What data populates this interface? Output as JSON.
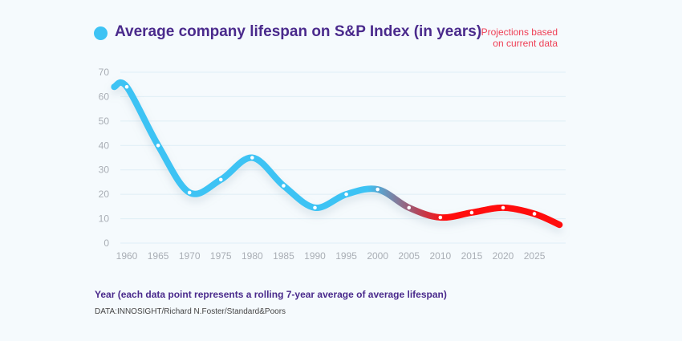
{
  "header": {
    "title": "Average company lifespan on S&P Index (in years)",
    "projection_note_line1": "Projections based",
    "projection_note_line2": "on current data"
  },
  "footer": {
    "xlabel": "Year (each data point represents a rolling 7-year average of average lifespan)",
    "source": "DATA:INNOSIGHT/Richard N.Foster/Standard&Poors"
  },
  "colors": {
    "history": "#3ec3f4",
    "projection": "#ff1010",
    "title": "#4a2a8c",
    "note": "#ef3f55",
    "grid": "#dfeef6",
    "tick": "#a9aeb5"
  },
  "chart_data": {
    "type": "line",
    "title": "Average company lifespan on S&P Index (in years)",
    "xlabel": "Year (each data point represents a rolling 7-year average of average lifespan)",
    "ylabel": "",
    "xlim": [
      1960,
      2030
    ],
    "ylim": [
      0,
      70
    ],
    "yticks": [
      0,
      10,
      20,
      30,
      40,
      50,
      60,
      70
    ],
    "xticks": [
      1960,
      1965,
      1970,
      1975,
      1980,
      1985,
      1990,
      1995,
      2000,
      2005,
      2010,
      2015,
      2020,
      2025
    ],
    "grid": "horizontal",
    "series": [
      {
        "points": [
          [
            1958,
            64
          ],
          [
            1960,
            64
          ],
          [
            1965,
            40
          ],
          [
            1970,
            20.7
          ],
          [
            1975,
            26
          ],
          [
            1980,
            35
          ],
          [
            1985,
            23.5
          ],
          [
            1990,
            14.5
          ],
          [
            1995,
            20
          ],
          [
            2000,
            22
          ],
          [
            2005,
            14.5
          ],
          [
            2010,
            10.5
          ],
          [
            2015,
            12.5
          ],
          [
            2020,
            14.5
          ],
          [
            2025,
            12
          ],
          [
            2029,
            7.5
          ]
        ],
        "markers": [
          [
            1960,
            64
          ],
          [
            1965,
            40
          ],
          [
            1970,
            20.7
          ],
          [
            1975,
            26
          ],
          [
            1980,
            35
          ],
          [
            1985,
            23.5
          ],
          [
            1990,
            14.5
          ],
          [
            1995,
            20
          ],
          [
            2000,
            22
          ],
          [
            2005,
            14.5
          ],
          [
            2010,
            10.5
          ],
          [
            2015,
            12.5
          ],
          [
            2020,
            14.5
          ],
          [
            2025,
            12
          ]
        ]
      }
    ],
    "annotation": "Projections based on current data"
  }
}
